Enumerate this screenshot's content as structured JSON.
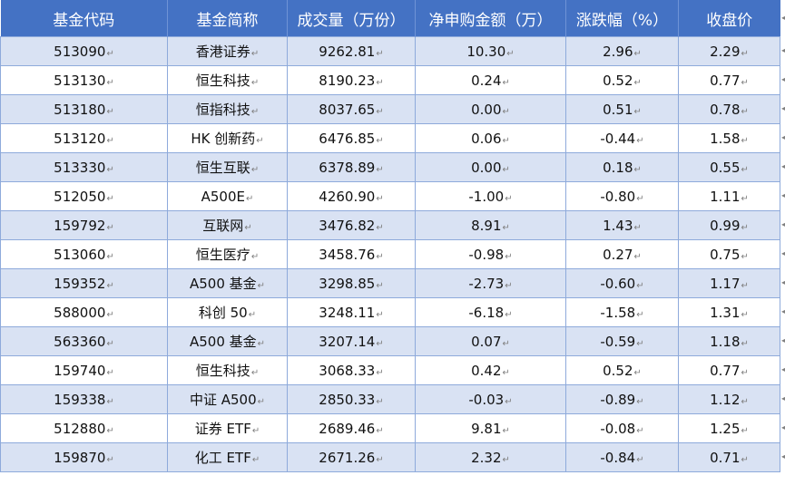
{
  "table": {
    "headers": [
      "基金代码",
      "基金简称",
      "成交量（万份）",
      "净申购金额（万）",
      "涨跌幅（%）",
      "收盘价"
    ],
    "rows": [
      [
        "513090",
        "香港证券",
        "9262.81",
        "10.30",
        "2.96",
        "2.29"
      ],
      [
        "513130",
        "恒生科技",
        "8190.23",
        "0.24",
        "0.52",
        "0.77"
      ],
      [
        "513180",
        "恒指科技",
        "8037.65",
        "0.00",
        "0.51",
        "0.78"
      ],
      [
        "513120",
        "HK 创新药",
        "6476.85",
        "0.06",
        "-0.44",
        "1.58"
      ],
      [
        "513330",
        "恒生互联",
        "6378.89",
        "0.00",
        "0.18",
        "0.55"
      ],
      [
        "512050",
        "A500E",
        "4260.90",
        "-1.00",
        "-0.80",
        "1.11"
      ],
      [
        "159792",
        "互联网",
        "3476.82",
        "8.91",
        "1.43",
        "0.99"
      ],
      [
        "513060",
        "恒生医疗",
        "3458.76",
        "-0.98",
        "0.27",
        "0.75"
      ],
      [
        "159352",
        "A500 基金",
        "3298.85",
        "-2.73",
        "-0.60",
        "1.17"
      ],
      [
        "588000",
        "科创 50",
        "3248.11",
        "-6.18",
        "-1.58",
        "1.31"
      ],
      [
        "563360",
        "A500 基金",
        "3207.14",
        "0.07",
        "-0.59",
        "1.18"
      ],
      [
        "159740",
        "恒生科技",
        "3068.33",
        "0.42",
        "0.52",
        "0.77"
      ],
      [
        "159338",
        "中证 A500",
        "2850.33",
        "-0.03",
        "-0.89",
        "1.12"
      ],
      [
        "512880",
        "证券 ETF",
        "2689.46",
        "9.81",
        "-0.08",
        "1.25"
      ],
      [
        "159870",
        "化工 ETF",
        "2671.26",
        "2.32",
        "-0.84",
        "0.71"
      ]
    ]
  },
  "colors": {
    "header_bg": "#4472c4",
    "band_bg": "#d9e2f3",
    "border": "#8eaadb"
  }
}
